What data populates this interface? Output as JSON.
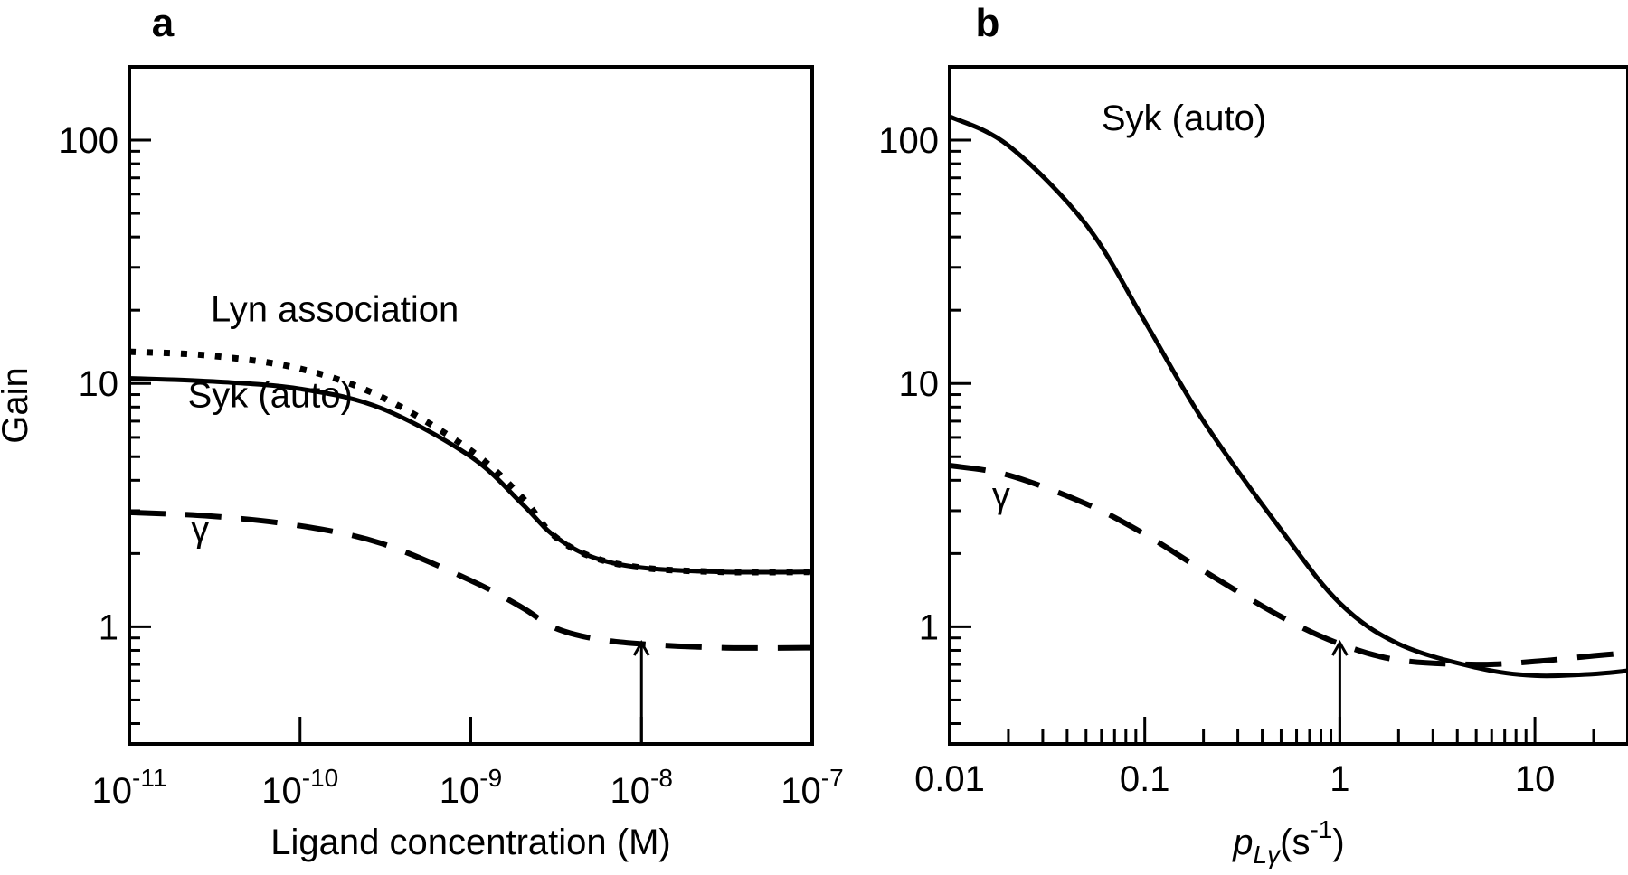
{
  "chart_data": [
    {
      "panel": "a",
      "type": "line",
      "xlabel": "Ligand concentration (M)",
      "ylabel": "Gain",
      "xscale": "log",
      "yscale": "log",
      "xlim": [
        1e-11,
        1e-07
      ],
      "ylim": [
        0.33,
        200
      ],
      "x_ticks": [
        {
          "base": "10",
          "exp": "-11"
        },
        {
          "base": "10",
          "exp": "-10"
        },
        {
          "base": "10",
          "exp": "-9"
        },
        {
          "base": "10",
          "exp": "-8"
        },
        {
          "base": "10",
          "exp": "-7"
        }
      ],
      "y_ticks": [
        "100",
        "10",
        "1"
      ],
      "series": [
        {
          "name": "Lyn association",
          "style": "dotted",
          "x": [
            1e-11,
            3e-11,
            1e-10,
            3e-10,
            1e-09,
            2e-09,
            3e-09,
            5e-09,
            1e-08,
            3e-08,
            1e-07
          ],
          "y": [
            13.5,
            13.0,
            11.5,
            8.8,
            5.3,
            3.4,
            2.4,
            1.95,
            1.75,
            1.68,
            1.68
          ]
        },
        {
          "name": "Syk (auto)",
          "style": "solid",
          "x": [
            1e-11,
            3e-11,
            1e-10,
            3e-10,
            1e-09,
            2e-09,
            3e-09,
            5e-09,
            1e-08,
            3e-08,
            1e-07
          ],
          "y": [
            10.5,
            10.2,
            9.5,
            7.9,
            5.0,
            3.2,
            2.4,
            1.95,
            1.75,
            1.68,
            1.68
          ]
        },
        {
          "name": "γ",
          "style": "dashed",
          "x": [
            1e-11,
            3e-11,
            1e-10,
            3e-10,
            1e-09,
            2e-09,
            3e-09,
            5e-09,
            1e-08,
            3e-08,
            1e-07
          ],
          "y": [
            2.95,
            2.85,
            2.6,
            2.2,
            1.55,
            1.2,
            1.0,
            0.9,
            0.85,
            0.82,
            0.82
          ]
        }
      ],
      "annotations": [
        {
          "text": "Lyn association",
          "x": 3e-11,
          "y": 18
        },
        {
          "text": "Syk (auto)",
          "x": 2.2e-11,
          "y": 8.0
        },
        {
          "text": "γ",
          "x": 2.3e-11,
          "y": 2.25
        }
      ],
      "arrow_x": 1e-08
    },
    {
      "panel": "b",
      "type": "line",
      "xlabel": "p_Lγ (s^-1)",
      "xlabel_parts": {
        "p": "p",
        "sub": "Lγ",
        "open": "(s",
        "sup": "-1",
        "close": ")"
      },
      "xscale": "log",
      "yscale": "log",
      "xlim": [
        0.01,
        30
      ],
      "ylim": [
        0.33,
        200
      ],
      "x_ticks": [
        "0.01",
        "0.1",
        "1",
        "10"
      ],
      "y_ticks": [
        "100",
        "10",
        "1"
      ],
      "series": [
        {
          "name": "Syk (auto)",
          "style": "solid",
          "x": [
            0.01,
            0.02,
            0.05,
            0.1,
            0.2,
            0.5,
            1,
            2,
            5,
            10,
            20,
            30
          ],
          "y": [
            125,
            95,
            45,
            18,
            7,
            2.5,
            1.25,
            0.85,
            0.68,
            0.63,
            0.64,
            0.66
          ]
        },
        {
          "name": "γ",
          "style": "dashed",
          "x": [
            0.01,
            0.02,
            0.05,
            0.1,
            0.2,
            0.5,
            1,
            2,
            5,
            10,
            20,
            30
          ],
          "y": [
            4.6,
            4.2,
            3.2,
            2.4,
            1.7,
            1.1,
            0.85,
            0.73,
            0.7,
            0.72,
            0.76,
            0.78
          ]
        }
      ],
      "annotations": [
        {
          "text": "Syk (auto)",
          "x": 0.06,
          "y": 110
        },
        {
          "text": "γ",
          "x": 0.0165,
          "y": 3.1
        }
      ],
      "arrow_x": 1
    }
  ]
}
